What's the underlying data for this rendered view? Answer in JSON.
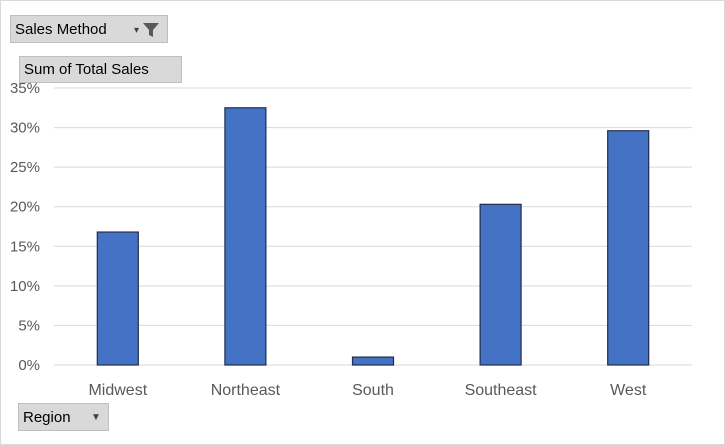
{
  "filter_button": {
    "label": "Sales Method",
    "dropdown_icon": "dropdown-arrow-icon",
    "filter_icon": "funnel-icon"
  },
  "value_button": {
    "label": "Sum of Total Sales"
  },
  "axis_button": {
    "label": "Region",
    "dropdown_icon": "dropdown-arrow-icon"
  },
  "colors": {
    "bar": "#4472c4",
    "bar_outline": "#1f2d4d",
    "grid": "#d9d9d9",
    "text": "#595959"
  },
  "chart_data": {
    "type": "bar",
    "categories": [
      "Midwest",
      "Northeast",
      "South",
      "Southeast",
      "West"
    ],
    "values": [
      0.168,
      0.325,
      0.01,
      0.203,
      0.296
    ],
    "ylim": [
      0,
      0.35
    ],
    "yticks": [
      0,
      0.05,
      0.1,
      0.15,
      0.2,
      0.25,
      0.3,
      0.35
    ],
    "ytick_labels": [
      "0%",
      "5%",
      "10%",
      "15%",
      "20%",
      "25%",
      "30%",
      "35%"
    ],
    "grid": true,
    "legend": "none",
    "title": "",
    "xlabel": "",
    "ylabel": ""
  }
}
